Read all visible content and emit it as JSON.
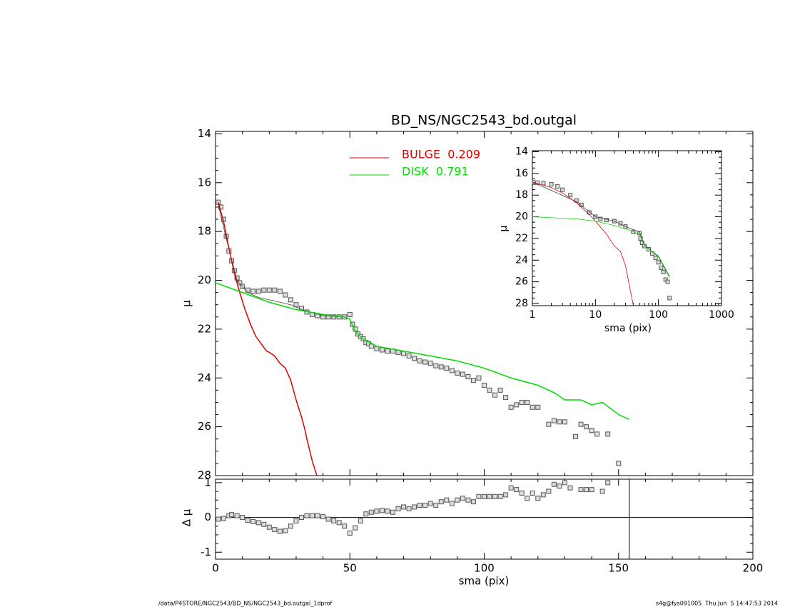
{
  "chart_data": [
    {
      "type": "line",
      "title": "BD_NS/NGC2543_bd.outgal",
      "ylabel": "μ",
      "xlim": [
        0,
        200
      ],
      "xticks": [
        0,
        50,
        100,
        150,
        200
      ],
      "ylim": [
        28,
        13.9
      ],
      "yticks": [
        14,
        16,
        18,
        20,
        22,
        24,
        26,
        28
      ],
      "legend": "top",
      "series": [
        {
          "marker": "square",
          "color": "#555555",
          "x": [
            1,
            2,
            3,
            4,
            5,
            6,
            7,
            8,
            9,
            10,
            12,
            14,
            16,
            18,
            20,
            22,
            24,
            26,
            28,
            30,
            32,
            34,
            36,
            38,
            40,
            42,
            44,
            46,
            48,
            50,
            51,
            52,
            53,
            54,
            55,
            56,
            57,
            58,
            60,
            62,
            64,
            66,
            68,
            70,
            72,
            74,
            76,
            78,
            80,
            82,
            84,
            86,
            88,
            90,
            92,
            94,
            96,
            98,
            100,
            102,
            104,
            106,
            108,
            110,
            112,
            114,
            116,
            118,
            120,
            124,
            126,
            128,
            130,
            134,
            136,
            138,
            140,
            142,
            146,
            150
          ],
          "values": [
            16.8,
            17.0,
            17.5,
            18.2,
            18.8,
            19.2,
            19.6,
            19.9,
            20.1,
            20.25,
            20.4,
            20.45,
            20.45,
            20.4,
            20.4,
            20.4,
            20.45,
            20.6,
            20.8,
            21.0,
            21.15,
            21.3,
            21.4,
            21.45,
            21.5,
            21.5,
            21.5,
            21.5,
            21.5,
            21.4,
            21.8,
            22.0,
            22.2,
            22.3,
            22.4,
            22.55,
            22.6,
            22.7,
            22.8,
            22.85,
            22.9,
            22.9,
            22.95,
            23.0,
            23.1,
            23.2,
            23.3,
            23.35,
            23.4,
            23.5,
            23.55,
            23.6,
            23.7,
            23.8,
            23.85,
            23.95,
            24.1,
            24.0,
            24.3,
            24.5,
            24.7,
            24.5,
            24.8,
            25.2,
            25.1,
            25.0,
            25.0,
            25.2,
            25.2,
            25.9,
            25.75,
            25.8,
            25.8,
            26.4,
            25.9,
            26.0,
            26.15,
            26.3,
            26.3,
            27.5
          ]
        },
        {
          "color": "#444444",
          "x": [
            1,
            4,
            8,
            12,
            16,
            20,
            24,
            28,
            32,
            40,
            48
          ],
          "values": [
            16.9,
            18.3,
            20.0,
            20.5,
            20.7,
            20.8,
            20.9,
            21.0,
            21.2,
            21.45,
            21.5
          ]
        },
        {
          "name": "BULGE  0.209",
          "color": "#dd0000",
          "x": [
            1,
            3,
            5,
            7,
            9,
            11,
            13,
            15,
            17,
            19,
            20,
            22,
            24,
            26,
            28,
            30,
            32,
            33,
            34,
            36,
            38
          ],
          "values": [
            16.8,
            17.6,
            18.7,
            19.7,
            20.5,
            21.2,
            21.8,
            22.3,
            22.6,
            22.9,
            22.95,
            23.1,
            23.4,
            23.6,
            24.1,
            24.9,
            25.6,
            26.0,
            26.5,
            27.4,
            28.1
          ]
        },
        {
          "name": "DISK  0.791",
          "color": "#00dd00",
          "x": [
            0,
            10,
            20,
            30,
            40,
            48,
            50,
            52,
            55,
            60,
            70,
            80,
            90,
            100,
            110,
            120,
            126,
            130,
            136,
            140,
            144,
            150,
            154
          ],
          "values": [
            20.1,
            20.5,
            20.9,
            21.2,
            21.4,
            21.5,
            21.6,
            22.1,
            22.4,
            22.7,
            22.9,
            23.1,
            23.3,
            23.6,
            24.0,
            24.3,
            24.6,
            24.9,
            24.9,
            25.1,
            25.0,
            25.5,
            25.7
          ]
        }
      ]
    },
    {
      "type": "line",
      "xlabel": "sma (pix)",
      "ylabel": "Δ μ",
      "xlim": [
        0,
        200
      ],
      "xticks": [
        0,
        50,
        100,
        150,
        200
      ],
      "ylim": [
        -1.2,
        1.1
      ],
      "yticks": [
        -1,
        0,
        1
      ],
      "hline": 0,
      "vline": 154,
      "series": [
        {
          "marker": "square",
          "color": "#555555",
          "x": [
            1,
            3,
            5,
            6,
            8,
            10,
            12,
            14,
            16,
            18,
            20,
            22,
            24,
            26,
            28,
            30,
            32,
            34,
            36,
            38,
            40,
            42,
            44,
            46,
            48,
            50,
            52,
            54,
            56,
            58,
            60,
            62,
            64,
            66,
            68,
            70,
            72,
            74,
            76,
            78,
            80,
            82,
            84,
            86,
            88,
            90,
            92,
            94,
            96,
            98,
            100,
            102,
            104,
            106,
            108,
            110,
            112,
            114,
            116,
            118,
            120,
            122,
            124,
            126,
            128,
            130,
            132,
            136,
            138,
            140,
            144,
            146
          ],
          "values": [
            -0.05,
            -0.03,
            0.05,
            0.08,
            0.05,
            0,
            -0.08,
            -0.12,
            -0.15,
            -0.2,
            -0.28,
            -0.35,
            -0.4,
            -0.38,
            -0.25,
            -0.1,
            0,
            0.05,
            0.05,
            0.05,
            0.02,
            -0.05,
            -0.1,
            -0.15,
            -0.25,
            -0.45,
            -0.3,
            -0.1,
            0.1,
            0.15,
            0.18,
            0.2,
            0.18,
            0.15,
            0.25,
            0.3,
            0.25,
            0.3,
            0.35,
            0.35,
            0.4,
            0.35,
            0.45,
            0.5,
            0.4,
            0.5,
            0.55,
            0.5,
            0.45,
            0.6,
            0.6,
            0.6,
            0.6,
            0.6,
            0.65,
            0.85,
            0.8,
            0.7,
            0.55,
            0.7,
            0.55,
            0.65,
            0.75,
            0.95,
            0.9,
            1.0,
            0.85,
            0.8,
            0.8,
            0.8,
            0.75,
            1.0
          ]
        }
      ]
    },
    {
      "type": "line",
      "xlabel": "sma (pix)",
      "ylabel": "μ",
      "xscale": "log",
      "xlim": [
        1,
        1000
      ],
      "xticks": [
        1,
        10,
        100,
        1000
      ],
      "ylim": [
        28.2,
        13.9
      ],
      "yticks": [
        14,
        16,
        18,
        20,
        22,
        24,
        26,
        28
      ],
      "series": [
        {
          "marker": "square",
          "color": "#555555",
          "x": [
            1,
            1.2,
            1.5,
            2,
            2.5,
            3,
            4,
            5,
            6,
            8,
            10,
            12,
            15,
            20,
            25,
            30,
            40,
            50,
            52,
            55,
            60,
            70,
            80,
            90,
            100,
            110,
            120,
            130,
            140,
            150
          ],
          "values": [
            16.8,
            16.85,
            16.9,
            17.0,
            17.2,
            17.5,
            18.0,
            18.5,
            18.9,
            19.6,
            20.0,
            20.2,
            20.3,
            20.4,
            20.6,
            20.9,
            21.4,
            21.5,
            22.0,
            22.4,
            22.7,
            23.0,
            23.4,
            23.8,
            24.2,
            24.7,
            25.1,
            25.8,
            26.0,
            27.5
          ]
        },
        {
          "color": "#444444",
          "x": [
            1,
            5,
            10,
            20,
            30,
            50,
            60,
            100,
            150
          ],
          "values": [
            16.8,
            18.6,
            20.0,
            20.4,
            20.9,
            21.4,
            22.6,
            23.7,
            25.6
          ]
        },
        {
          "color": "#dd0000",
          "x": [
            1,
            2,
            3,
            5,
            8,
            10,
            15,
            20,
            25,
            30,
            35,
            40
          ],
          "values": [
            16.8,
            17.3,
            17.8,
            18.7,
            19.8,
            20.4,
            21.6,
            22.7,
            23.2,
            24.5,
            26.5,
            28.2
          ]
        },
        {
          "color": "#00dd00",
          "x": [
            1,
            5,
            10,
            20,
            30,
            50,
            60,
            100,
            150
          ],
          "values": [
            20.0,
            20.2,
            20.4,
            20.8,
            21.1,
            21.6,
            22.7,
            23.6,
            25.5
          ]
        }
      ]
    }
  ],
  "footer": {
    "left": "/data/P4STORE/NGC2543/BD_NS/NGC2543_bd.outgal_1dprof",
    "right": "s4g@fys091005  Thu Jun  5 14:47:53 2014"
  }
}
